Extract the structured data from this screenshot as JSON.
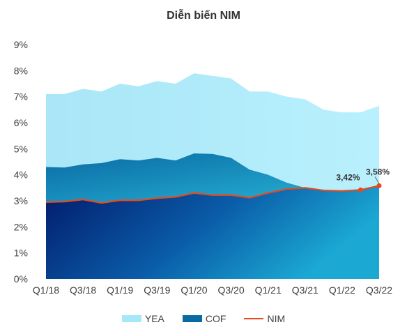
{
  "chart_data": {
    "type": "area",
    "title": "Diễn biến NIM",
    "xlabel": "",
    "ylabel": "",
    "categories": [
      "Q1/18",
      "Q2/18",
      "Q3/18",
      "Q4/18",
      "Q1/19",
      "Q2/19",
      "Q3/19",
      "Q4/19",
      "Q1/20",
      "Q2/20",
      "Q3/20",
      "Q4/20",
      "Q1/21",
      "Q2/21",
      "Q3/21",
      "Q4/21",
      "Q1/22",
      "Q2/22",
      "Q3/22"
    ],
    "x_tick_labels": [
      "Q1/18",
      "Q3/18",
      "Q1/19",
      "Q3/19",
      "Q1/20",
      "Q3/20",
      "Q1/21",
      "Q3/21",
      "Q1/22",
      "Q3/22"
    ],
    "y_tick_labels": [
      "0%",
      "1%",
      "2%",
      "3%",
      "4%",
      "5%",
      "6%",
      "7%",
      "8%",
      "9%"
    ],
    "ylim": [
      0,
      9
    ],
    "grid": false,
    "legend_position": "bottom",
    "series": [
      {
        "name": "YEA",
        "kind": "area",
        "color": "#a6e8fa",
        "values": [
          7.1,
          7.1,
          7.3,
          7.2,
          7.5,
          7.4,
          7.6,
          7.5,
          7.9,
          7.8,
          7.7,
          7.2,
          7.2,
          7.0,
          6.9,
          6.5,
          6.4,
          6.4,
          6.65
        ]
      },
      {
        "name": "COF",
        "kind": "area",
        "color": "#0a7bb0",
        "values": [
          4.3,
          4.28,
          4.4,
          4.45,
          4.6,
          4.55,
          4.65,
          4.55,
          4.82,
          4.8,
          4.65,
          4.2,
          4.0,
          3.7,
          3.5,
          3.25,
          3.15,
          3.15,
          3.25
        ]
      },
      {
        "name": "NIM",
        "kind": "line",
        "color": "#e8491d",
        "values": [
          2.95,
          2.97,
          3.05,
          2.92,
          3.02,
          3.02,
          3.1,
          3.15,
          3.3,
          3.22,
          3.22,
          3.12,
          3.3,
          3.45,
          3.5,
          3.4,
          3.38,
          3.42,
          3.58
        ]
      }
    ],
    "annotations": [
      {
        "series": "NIM",
        "category": "Q2/22",
        "text": "3,42%"
      },
      {
        "series": "NIM",
        "category": "Q3/22",
        "text": "3,58%"
      }
    ]
  }
}
